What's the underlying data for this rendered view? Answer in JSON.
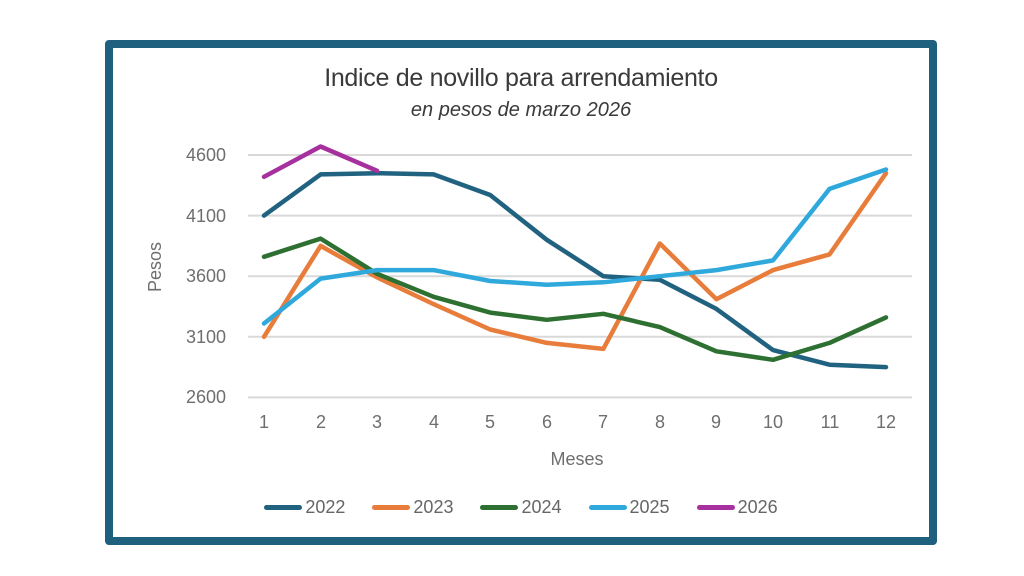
{
  "frame": {
    "border_color": "#20607F"
  },
  "chart_data": {
    "type": "line",
    "title": "Indice de novillo para arrendamiento",
    "subtitle": "en pesos de marzo 2026",
    "xlabel": "Meses",
    "ylabel": "Pesos",
    "categories": [
      1,
      2,
      3,
      4,
      5,
      6,
      7,
      8,
      9,
      10,
      11,
      12
    ],
    "yticks": [
      2600,
      3100,
      3600,
      4100,
      4600
    ],
    "ylim": [
      2600,
      4750
    ],
    "grid": "horizontal",
    "gridline_color": "#D9D9D9",
    "axis_text_color": "#6E6E6E",
    "legend_position": "bottom",
    "series": [
      {
        "name": "2022",
        "color": "#20627F",
        "values": [
          4100,
          4440,
          4450,
          4440,
          4270,
          3900,
          3600,
          3570,
          3330,
          2990,
          2870,
          2850
        ]
      },
      {
        "name": "2023",
        "color": "#E87D3B",
        "values": [
          3100,
          3850,
          3590,
          3370,
          3160,
          3050,
          3000,
          3870,
          3410,
          3650,
          3780,
          4450
        ]
      },
      {
        "name": "2024",
        "color": "#2E7031",
        "values": [
          3760,
          3910,
          3620,
          3430,
          3300,
          3240,
          3290,
          3180,
          2980,
          2910,
          3050,
          3260
        ]
      },
      {
        "name": "2025",
        "color": "#2FA8DC",
        "values": [
          3210,
          3580,
          3650,
          3650,
          3560,
          3530,
          3550,
          3600,
          3650,
          3730,
          4320,
          4480
        ]
      },
      {
        "name": "2026",
        "color": "#A6309E",
        "values": [
          4420,
          4670,
          4470,
          null,
          null,
          null,
          null,
          null,
          null,
          null,
          null,
          null
        ]
      }
    ]
  }
}
